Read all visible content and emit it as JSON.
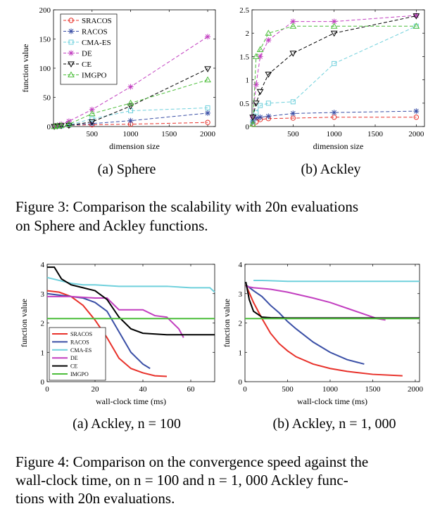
{
  "figure3": {
    "caption": "Figure 3: Comparison the scalability with 20n evaluations on Sphere and Ackley functions.",
    "caption_line1": "Figure 3: Comparison the scalability with 20n evaluations",
    "caption_line2": "on Sphere and Ackley functions.",
    "subcaption_a": "(a) Sphere",
    "subcaption_b": "(b) Ackley"
  },
  "figure4": {
    "caption": "Figure 4: Comparison on the convergence speed against the wall-clock time, on n = 100 and n = 1,000 Ackley functions with 20n evaluations.",
    "caption_line1": "Figure 4: Comparison on the convergence speed against the",
    "caption_line2": "wall-clock time, on n = 100 and n = 1, 000 Ackley func-",
    "caption_line3": "tions with 20n evaluations.",
    "subcaption_a": "(a) Ackley, n = 100",
    "subcaption_b": "(b) Ackley, n = 1, 000"
  },
  "colors": {
    "SRACOS": "#e8312a",
    "RACOS": "#3a4fa6",
    "CMA-ES": "#6fd0dc",
    "DE": "#c23fc0",
    "CE": "#000000",
    "IMGPO": "#4cbe3a"
  },
  "chart_data": [
    {
      "id": "fig3a",
      "type": "line",
      "xlabel": "dimension size",
      "ylabel": "function value",
      "xlim": [
        0,
        2100
      ],
      "ylim": [
        0,
        200
      ],
      "xticks": [
        500,
        1000,
        1500,
        2000
      ],
      "yticks": [
        0,
        50,
        100,
        150,
        200
      ],
      "legend": "top-left",
      "grid": false,
      "series": [
        {
          "name": "SRACOS",
          "style": "dashed",
          "marker": "circle",
          "x": [
            10,
            50,
            100,
            200,
            500,
            1000,
            2000
          ],
          "y": [
            0,
            0.5,
            1,
            2,
            3,
            4,
            7
          ]
        },
        {
          "name": "RACOS",
          "style": "dashed",
          "marker": "asterisk",
          "x": [
            10,
            50,
            100,
            200,
            500,
            1000,
            2000
          ],
          "y": [
            0,
            0.5,
            1,
            2,
            5,
            10,
            23
          ]
        },
        {
          "name": "CMA-ES",
          "style": "dashed",
          "marker": "square",
          "x": [
            10,
            50,
            100,
            200,
            500,
            1000,
            2000
          ],
          "y": [
            0,
            0.5,
            1,
            3,
            13,
            27,
            32
          ]
        },
        {
          "name": "DE",
          "style": "dashed",
          "marker": "asterisk",
          "x": [
            10,
            50,
            100,
            200,
            500,
            1000,
            2000
          ],
          "y": [
            0,
            2,
            4,
            9,
            29,
            68,
            154
          ]
        },
        {
          "name": "CE",
          "style": "dashed",
          "marker": "triangle-down",
          "x": [
            10,
            50,
            100,
            200,
            500,
            1000,
            2000
          ],
          "y": [
            0,
            1,
            1.5,
            2,
            8,
            35,
            99
          ]
        },
        {
          "name": "IMGPO",
          "style": "dashed",
          "marker": "triangle-up",
          "x": [
            10,
            50,
            100,
            200,
            500,
            1000,
            2000
          ],
          "y": [
            0,
            1,
            2,
            4,
            22,
            40,
            80
          ]
        }
      ]
    },
    {
      "id": "fig3b",
      "type": "line",
      "xlabel": "dimension size",
      "ylabel": "",
      "xlim": [
        0,
        2100
      ],
      "ylim": [
        0,
        2.5
      ],
      "xticks": [
        500,
        1000,
        1500,
        2000
      ],
      "yticks": [
        0,
        0.5,
        1,
        1.5,
        2,
        2.5
      ],
      "grid": false,
      "series": [
        {
          "name": "SRACOS",
          "style": "dashed",
          "marker": "circle",
          "x": [
            10,
            50,
            100,
            200,
            500,
            1000,
            2000
          ],
          "y": [
            0.05,
            0.1,
            0.15,
            0.17,
            0.18,
            0.2,
            0.2
          ]
        },
        {
          "name": "RACOS",
          "style": "dashed",
          "marker": "asterisk",
          "x": [
            10,
            50,
            100,
            200,
            500,
            1000,
            2000
          ],
          "y": [
            0.1,
            0.18,
            0.2,
            0.22,
            0.28,
            0.3,
            0.33
          ]
        },
        {
          "name": "CMA-ES",
          "style": "dashed",
          "marker": "square",
          "x": [
            10,
            50,
            100,
            200,
            500,
            1000,
            2000
          ],
          "y": [
            0.1,
            0.3,
            0.45,
            0.5,
            0.53,
            1.35,
            2.15
          ]
        },
        {
          "name": "DE",
          "style": "dashed",
          "marker": "asterisk",
          "x": [
            10,
            50,
            100,
            200,
            500,
            1000,
            2000
          ],
          "y": [
            0.2,
            0.9,
            1.5,
            1.85,
            2.25,
            2.25,
            2.38
          ]
        },
        {
          "name": "CE",
          "style": "dashed",
          "marker": "triangle-down",
          "x": [
            10,
            50,
            100,
            200,
            500,
            1000,
            2000
          ],
          "y": [
            0.2,
            0.5,
            0.75,
            1.12,
            1.57,
            2.0,
            2.37
          ]
        },
        {
          "name": "IMGPO",
          "style": "dashed",
          "marker": "triangle-up",
          "x": [
            10,
            50,
            100,
            200,
            500,
            1000,
            2000
          ],
          "y": [
            0.05,
            1.5,
            1.65,
            2.0,
            2.15,
            2.15,
            2.15
          ]
        }
      ]
    },
    {
      "id": "fig4a",
      "type": "line",
      "xlabel": "wall-clock time (ms)",
      "ylabel": "function value",
      "xlim": [
        0,
        70
      ],
      "ylim": [
        0,
        4
      ],
      "xticks": [
        0,
        20,
        40,
        60
      ],
      "yticks": [
        0,
        1,
        2,
        3,
        4
      ],
      "legend": "bottom-left",
      "grid": false,
      "series": [
        {
          "name": "SRACOS",
          "style": "solid",
          "x": [
            0,
            5,
            10,
            15,
            20,
            25,
            30,
            35,
            40,
            45,
            50
          ],
          "y": [
            3.1,
            3.05,
            2.9,
            2.6,
            2.1,
            1.5,
            0.8,
            0.45,
            0.3,
            0.2,
            0.18
          ]
        },
        {
          "name": "RACOS",
          "style": "solid",
          "x": [
            0,
            5,
            10,
            15,
            20,
            25,
            30,
            35,
            40,
            43
          ],
          "y": [
            3.0,
            2.95,
            2.9,
            2.85,
            2.7,
            2.4,
            1.7,
            1.0,
            0.6,
            0.45
          ]
        },
        {
          "name": "CMA-ES",
          "style": "solid",
          "x": [
            0,
            5,
            10,
            15,
            20,
            30,
            40,
            50,
            60,
            68,
            70
          ],
          "y": [
            3.55,
            3.45,
            3.35,
            3.3,
            3.3,
            3.25,
            3.25,
            3.25,
            3.2,
            3.2,
            3.05
          ]
        },
        {
          "name": "DE",
          "style": "solid",
          "x": [
            0,
            10,
            20,
            25,
            30,
            40,
            45,
            50,
            55,
            57
          ],
          "y": [
            2.9,
            2.9,
            2.85,
            2.85,
            2.45,
            2.45,
            2.25,
            2.2,
            1.8,
            1.5
          ]
        },
        {
          "name": "CE",
          "style": "solid",
          "x": [
            0,
            3,
            6,
            10,
            15,
            20,
            25,
            30,
            35,
            40,
            50,
            60,
            70
          ],
          "y": [
            3.9,
            3.9,
            3.5,
            3.3,
            3.2,
            3.1,
            2.8,
            2.2,
            1.8,
            1.65,
            1.6,
            1.6,
            1.6
          ]
        },
        {
          "name": "IMGPO",
          "style": "solid",
          "x": [
            0,
            70
          ],
          "y": [
            2.15,
            2.15
          ]
        }
      ]
    },
    {
      "id": "fig4b",
      "type": "line",
      "xlabel": "wall-clock time (ms)",
      "ylabel": "function value",
      "xlim": [
        0,
        2050
      ],
      "ylim": [
        0,
        4
      ],
      "xticks": [
        0,
        500,
        1000,
        1500,
        2000
      ],
      "yticks": [
        0,
        1,
        2,
        3,
        4
      ],
      "grid": false,
      "series": [
        {
          "name": "SRACOS",
          "style": "solid",
          "x": [
            10,
            100,
            200,
            300,
            400,
            500,
            600,
            800,
            1000,
            1200,
            1500,
            1850
          ],
          "y": [
            3.3,
            2.7,
            2.15,
            1.65,
            1.3,
            1.05,
            0.85,
            0.6,
            0.45,
            0.35,
            0.25,
            0.2
          ]
        },
        {
          "name": "RACOS",
          "style": "solid",
          "x": [
            10,
            100,
            200,
            300,
            400,
            500,
            600,
            800,
            1000,
            1200,
            1400
          ],
          "y": [
            3.3,
            3.1,
            2.9,
            2.6,
            2.35,
            2.05,
            1.8,
            1.35,
            1.0,
            0.75,
            0.6
          ]
        },
        {
          "name": "CMA-ES",
          "style": "solid",
          "x": [
            100,
            200,
            500,
            1000,
            1500,
            2050
          ],
          "y": [
            3.45,
            3.45,
            3.42,
            3.42,
            3.42,
            3.42
          ]
        },
        {
          "name": "DE",
          "style": "solid",
          "x": [
            10,
            100,
            300,
            500,
            800,
            1000,
            1200,
            1400,
            1550,
            1650
          ],
          "y": [
            3.25,
            3.2,
            3.15,
            3.05,
            2.85,
            2.7,
            2.5,
            2.3,
            2.15,
            2.1
          ]
        },
        {
          "name": "CE",
          "style": "solid",
          "x": [
            10,
            50,
            100,
            200,
            300,
            500,
            1000,
            2050
          ],
          "y": [
            3.4,
            2.8,
            2.4,
            2.2,
            2.18,
            2.17,
            2.17,
            2.17
          ]
        },
        {
          "name": "IMGPO",
          "style": "solid",
          "x": [
            0,
            2050
          ],
          "y": [
            2.15,
            2.15
          ]
        }
      ]
    }
  ]
}
